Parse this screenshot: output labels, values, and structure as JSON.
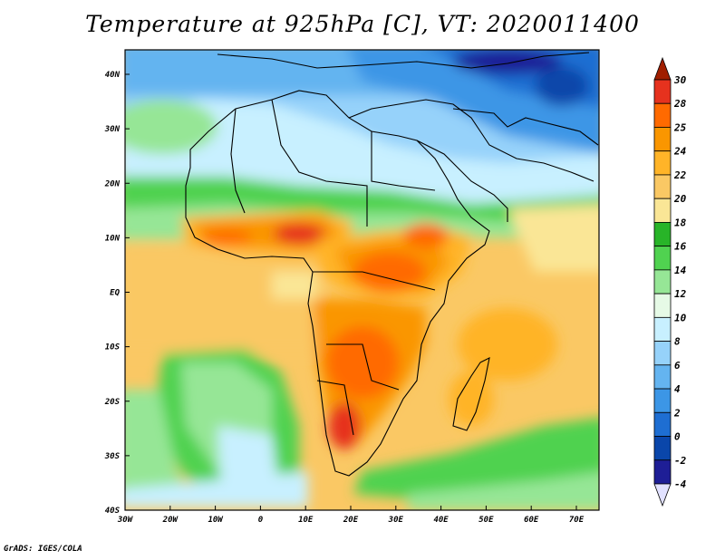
{
  "title": "Temperature at 925hPa [C], VT: 2020011400",
  "credit": "GrADS: IGES/COLA",
  "map": {
    "projection": "lat-lon",
    "lon_range": [
      -30,
      75
    ],
    "lat_range": [
      -40,
      45
    ],
    "lat_labels": [
      "40N",
      "30N",
      "20N",
      "10N",
      "EQ",
      "10S",
      "20S",
      "30S",
      "40S"
    ],
    "lon_labels": [
      "30W",
      "20W",
      "10W",
      "0",
      "10E",
      "20E",
      "30E",
      "40E",
      "50E",
      "60E",
      "70E"
    ]
  },
  "colorbar": {
    "labels": [
      "30",
      "28",
      "25",
      "24",
      "22",
      "20",
      "18",
      "16",
      "14",
      "12",
      "10",
      "8",
      "6",
      "4",
      "2",
      "0",
      "-2",
      "-4"
    ],
    "colors": [
      "#a01e00",
      "#e6321e",
      "#ff6a00",
      "#fa9600",
      "#ffb428",
      "#fac864",
      "#fae696",
      "#28b428",
      "#50d250",
      "#96e696",
      "#e6fae6",
      "#c8f0ff",
      "#96d2fa",
      "#64b4f0",
      "#3c96e6",
      "#1e6ed2",
      "#0a46aa",
      "#1e1e96",
      "#e1e1ff"
    ]
  }
}
